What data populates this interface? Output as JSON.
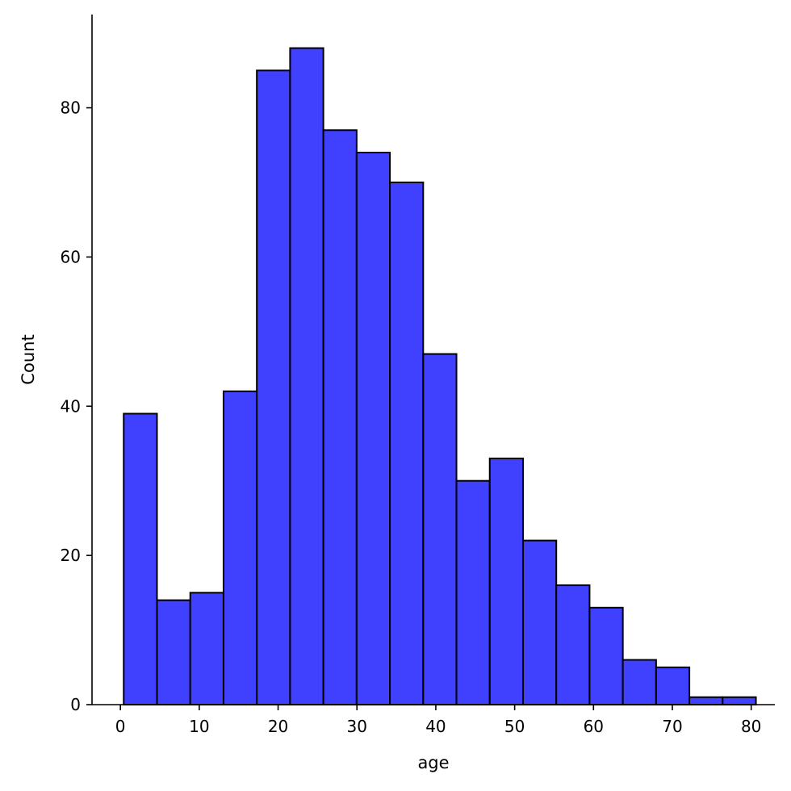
{
  "chart_data": {
    "type": "bar",
    "histogram": true,
    "title": "",
    "xlabel": "age",
    "ylabel": "Count",
    "bin_edges": [
      0.42,
      4.64,
      8.86,
      13.08,
      17.3,
      21.52,
      25.74,
      29.96,
      34.18,
      38.4,
      42.62,
      46.84,
      51.06,
      55.28,
      59.5,
      63.72,
      67.94,
      72.16,
      76.38,
      80.6
    ],
    "values": [
      39,
      14,
      15,
      42,
      85,
      88,
      77,
      74,
      70,
      47,
      30,
      33,
      22,
      16,
      13,
      6,
      5,
      1,
      1
    ],
    "xlim": [
      -3.6,
      83.0
    ],
    "ylim": [
      0,
      92.5
    ],
    "xticks": [
      0,
      10,
      20,
      30,
      40,
      50,
      60,
      70,
      80
    ],
    "xtick_labels": [
      "0",
      "10",
      "20",
      "30",
      "40",
      "50",
      "60",
      "70",
      "80"
    ],
    "yticks": [
      0,
      20,
      40,
      60,
      80
    ],
    "ytick_labels": [
      "0",
      "20",
      "40",
      "60",
      "80"
    ],
    "grid": false,
    "legend": "none",
    "bar_color": "#4040ff",
    "edge_color": "#000000"
  }
}
